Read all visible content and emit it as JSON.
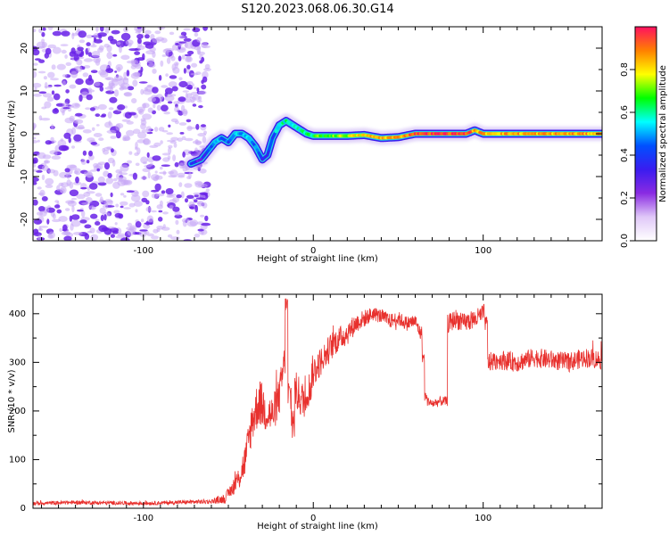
{
  "title": "S120.2023.068.06.30.G14",
  "colors": {
    "ridge_high": "#e8204a",
    "ridge_mid": "#c8f020",
    "ridge_edge": "#20d0e0",
    "noise": "#6a22e8",
    "noise_light": "#c7a8f5",
    "snr_line": "#e8312e"
  },
  "chart_data": [
    {
      "type": "heatmap",
      "xlabel": "Height of straight line (km)",
      "ylabel": "Frequency (Hz)",
      "xlim": [
        -165,
        170
      ],
      "ylim": [
        -25,
        25
      ],
      "x_ticks": [
        -100,
        0,
        100
      ],
      "y_ticks": [
        -20,
        -10,
        0,
        10,
        20
      ],
      "colorbar": {
        "label": "Normalized spectral amplitude",
        "range": [
          0.0,
          1.0
        ],
        "ticks": [
          "0.0",
          "0.2",
          "0.4",
          "0.6",
          "0.8"
        ],
        "colormap": [
          "#ffffff",
          "#e0c8f8",
          "#8a2be2",
          "#3a1cf0",
          "#0050ff",
          "#00ffff",
          "#00ff00",
          "#ffff00",
          "#ff8000",
          "#ff1060"
        ]
      },
      "noise_region": {
        "x_from": -165,
        "x_to": -62
      },
      "ridge": {
        "x": [
          -72,
          -66,
          -62,
          -58,
          -54,
          -50,
          -46,
          -42,
          -38,
          -34,
          -30,
          -27,
          -24,
          -20,
          -16,
          -12,
          -8,
          -4,
          0,
          10,
          20,
          30,
          40,
          50,
          60,
          80,
          90,
          95,
          100,
          120,
          140,
          160,
          170
        ],
        "frequency": [
          -7,
          -6,
          -4,
          -2,
          -1,
          -2,
          0,
          0,
          -1,
          -3,
          -6,
          -5,
          -1,
          2,
          3,
          2,
          1,
          0,
          -0.5,
          -0.5,
          -0.5,
          -0.3,
          -1,
          -0.8,
          0,
          0,
          0,
          0.8,
          0,
          0,
          0,
          0,
          0
        ],
        "amplitude": [
          0.35,
          0.3,
          0.4,
          0.45,
          0.5,
          0.45,
          0.5,
          0.5,
          0.5,
          0.45,
          0.35,
          0.4,
          0.45,
          0.55,
          0.6,
          0.55,
          0.55,
          0.6,
          0.65,
          0.7,
          0.75,
          0.8,
          0.85,
          0.85,
          0.95,
          0.95,
          0.95,
          0.85,
          0.85,
          0.85,
          0.85,
          0.85,
          0.85
        ]
      }
    },
    {
      "type": "line",
      "xlabel": "Height of straight line (km)",
      "ylabel": "SNR (10 * v/v)",
      "xlim": [
        -165,
        170
      ],
      "ylim": [
        0,
        440
      ],
      "x_ticks": [
        -100,
        0,
        100
      ],
      "y_ticks": [
        0,
        100,
        200,
        300,
        400
      ],
      "series": [
        {
          "color": "#e8312e",
          "x": [
            -165,
            -140,
            -120,
            -100,
            -80,
            -60,
            -52,
            -48,
            -44,
            -40,
            -36,
            -32,
            -28,
            -24,
            -20,
            -17,
            -16,
            -14,
            -12,
            -10,
            -6,
            -2,
            0,
            4,
            8,
            12,
            16,
            20,
            25,
            30,
            35,
            40,
            45,
            50,
            55,
            60,
            63,
            65,
            66,
            68,
            70,
            75,
            78,
            80,
            84,
            88,
            92,
            96,
            100,
            102,
            103,
            110,
            120,
            130,
            140,
            150,
            160,
            170
          ],
          "y": [
            10,
            12,
            11,
            10,
            12,
            14,
            20,
            40,
            60,
            100,
            180,
            220,
            200,
            190,
            230,
            300,
            420,
            230,
            180,
            240,
            220,
            250,
            280,
            300,
            320,
            340,
            350,
            360,
            380,
            390,
            400,
            395,
            385,
            390,
            380,
            385,
            360,
            310,
            230,
            220,
            215,
            220,
            220,
            380,
            390,
            380,
            385,
            390,
            400,
            380,
            300,
            305,
            300,
            310,
            305,
            300,
            310,
            305
          ],
          "noise_amplitude": [
            4,
            4,
            4,
            4,
            4,
            5,
            10,
            15,
            25,
            35,
            45,
            50,
            45,
            40,
            40,
            40,
            15,
            40,
            45,
            40,
            40,
            35,
            35,
            30,
            30,
            28,
            25,
            25,
            20,
            18,
            15,
            15,
            15,
            15,
            15,
            15,
            15,
            10,
            10,
            10,
            10,
            10,
            10,
            20,
            20,
            20,
            20,
            20,
            20,
            15,
            20,
            20,
            20,
            20,
            20,
            20,
            20,
            20
          ]
        }
      ]
    }
  ]
}
